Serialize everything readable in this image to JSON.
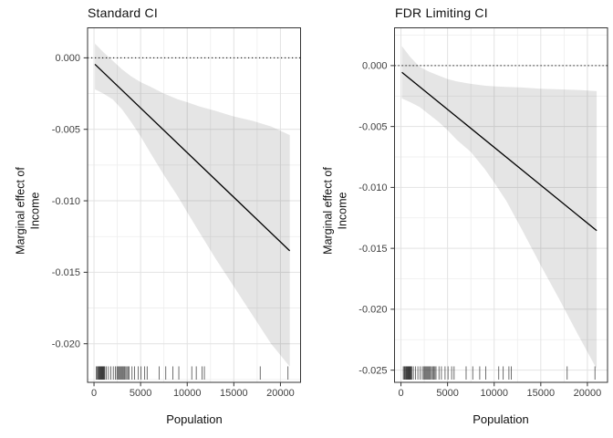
{
  "styles": {
    "background": "#ffffff",
    "panel_background": "#ffffff",
    "panel_border": "#333333",
    "grid_major": "#e2e2e2",
    "grid_minor": "#ededed",
    "ribbon_fill": "rgba(0,0,0,0.10)",
    "effect_line": "#000000",
    "zero_line": "#000000",
    "rug_color": "rgba(30,30,30,0.8)",
    "tick_mark": "#333333",
    "tick_label": "#404040",
    "title_color": "#111111"
  },
  "chart_data": [
    {
      "type": "line",
      "title": "Standard CI",
      "xlabel": "Population",
      "ylabel_line1": "Marginal effect of",
      "ylabel_line2": "Income",
      "xlim": [
        -690,
        22160
      ],
      "ylim": [
        -0.0227,
        0.0021
      ],
      "x_ticks": [
        0,
        5000,
        10000,
        15000,
        20000
      ],
      "x_tick_labels": [
        "0",
        "5000",
        "10000",
        "15000",
        "20000"
      ],
      "y_ticks": [
        0,
        -0.005,
        -0.01,
        -0.015,
        -0.02
      ],
      "y_tick_labels": [
        "0.000",
        "-0.005",
        "-0.010",
        "-0.015",
        "-0.020"
      ],
      "grid": true,
      "legend": "none",
      "reference_line_y": 0,
      "line": {
        "x": [
          100,
          21000
        ],
        "y": [
          -0.00045,
          -0.0135
        ]
      },
      "ribbon": {
        "x": [
          100,
          1000,
          2000,
          3000,
          4000,
          5000,
          6000,
          7500,
          9000,
          10000,
          11300,
          13000,
          15000,
          17000,
          19000,
          21000
        ],
        "upper": [
          0.001,
          0.0004,
          -0.0002,
          -0.0008,
          -0.0013,
          -0.0017,
          -0.002,
          -0.0025,
          -0.0029,
          -0.0031,
          -0.0034,
          -0.0037,
          -0.0041,
          -0.0044,
          -0.0048,
          -0.0054
        ],
        "lower": [
          -0.0022,
          -0.0025,
          -0.0029,
          -0.0036,
          -0.0045,
          -0.0055,
          -0.0066,
          -0.0082,
          -0.0097,
          -0.0108,
          -0.0122,
          -0.014,
          -0.016,
          -0.018,
          -0.02,
          -0.0216
        ]
      },
      "rug_x": [
        250,
        350,
        420,
        500,
        560,
        620,
        680,
        730,
        780,
        830,
        880,
        930,
        980,
        1030,
        1090,
        1160,
        1330,
        1550,
        1815,
        2070,
        2300,
        2460,
        2560,
        2660,
        2760,
        2860,
        2960,
        3060,
        3160,
        3280,
        3400,
        3520,
        3640,
        3760,
        4080,
        4340,
        4730,
        5050,
        5440,
        5700,
        6990,
        7700,
        8450,
        9100,
        10490,
        10970,
        11580,
        11840,
        17830,
        20810
      ]
    },
    {
      "type": "line",
      "title": "FDR Limiting CI",
      "xlabel": "Population",
      "ylabel_line1": "Marginal effect of",
      "ylabel_line2": "Income",
      "xlim": [
        -690,
        22160
      ],
      "ylim": [
        -0.026,
        0.0031
      ],
      "x_ticks": [
        0,
        5000,
        10000,
        15000,
        20000
      ],
      "x_tick_labels": [
        "0",
        "5000",
        "10000",
        "15000",
        "20000"
      ],
      "y_ticks": [
        0,
        -0.005,
        -0.01,
        -0.015,
        -0.02,
        -0.025
      ],
      "y_tick_labels": [
        "0.000",
        "-0.005",
        "-0.010",
        "-0.015",
        "-0.020",
        "-0.025"
      ],
      "grid": true,
      "legend": "none",
      "reference_line_y": 0,
      "line": {
        "x": [
          100,
          21000
        ],
        "y": [
          -0.00055,
          -0.01355
        ]
      },
      "ribbon": {
        "x": [
          100,
          1000,
          2000,
          3000,
          4000,
          5000,
          6000,
          7500,
          9000,
          10000,
          11300,
          13000,
          15000,
          17000,
          19000,
          21000
        ],
        "upper": [
          0.0016,
          0.0007,
          -0.0001,
          -0.0005,
          -0.0008,
          -0.0011,
          -0.0013,
          -0.0015,
          -0.00165,
          -0.0017,
          -0.00175,
          -0.0018,
          -0.0019,
          -0.00195,
          -0.002,
          -0.0021
        ],
        "lower": [
          -0.0027,
          -0.003,
          -0.0034,
          -0.004,
          -0.0046,
          -0.0053,
          -0.0061,
          -0.0071,
          -0.0085,
          -0.0096,
          -0.0111,
          -0.0135,
          -0.0164,
          -0.0192,
          -0.0221,
          -0.0249
        ]
      },
      "rug_x": [
        250,
        350,
        420,
        500,
        560,
        620,
        680,
        730,
        780,
        830,
        880,
        930,
        980,
        1030,
        1090,
        1160,
        1330,
        1550,
        1815,
        2070,
        2300,
        2460,
        2560,
        2660,
        2760,
        2860,
        2960,
        3060,
        3160,
        3280,
        3400,
        3520,
        3640,
        3760,
        4080,
        4340,
        4730,
        5050,
        5440,
        5700,
        6990,
        7700,
        8450,
        9100,
        10490,
        10970,
        11580,
        11840,
        17830,
        20810
      ]
    }
  ]
}
